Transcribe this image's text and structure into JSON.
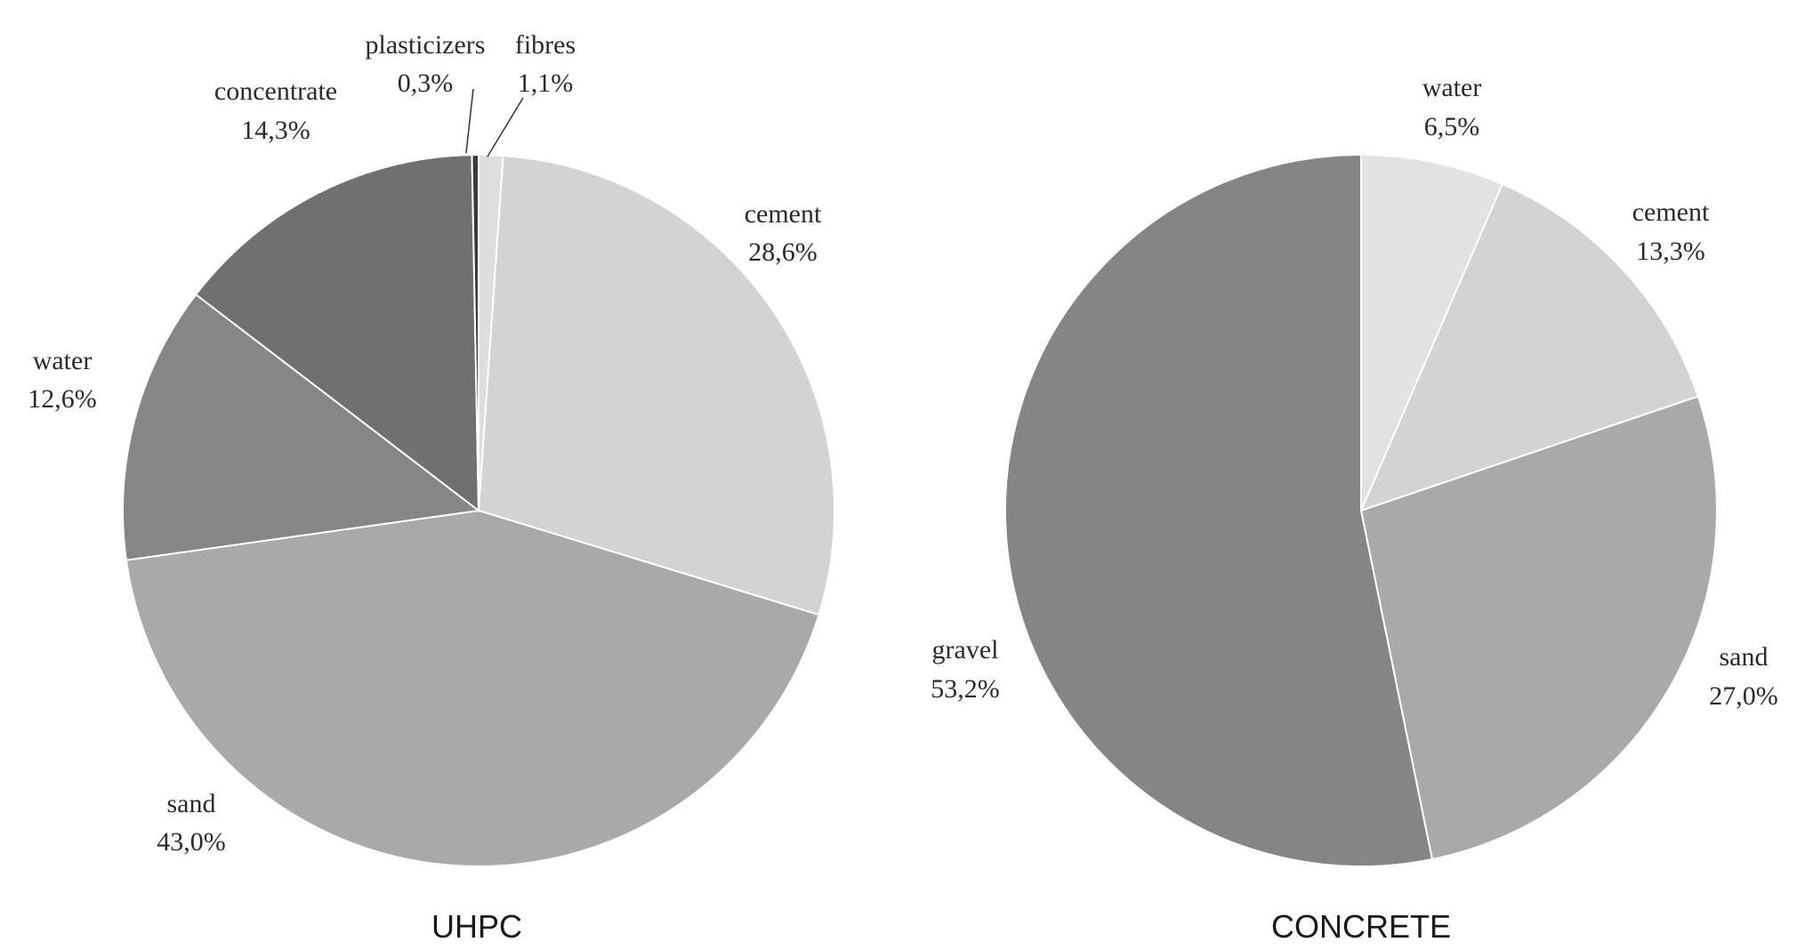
{
  "chart_data": [
    {
      "type": "pie",
      "title": "UHPC",
      "slices": [
        {
          "label": "fibres",
          "value": 1.1,
          "value_text": "1,1%",
          "color": "#dedede"
        },
        {
          "label": "cement",
          "value": 28.6,
          "value_text": "28,6%",
          "color": "#d3d3d1"
        },
        {
          "label": "sand",
          "value": 43.0,
          "value_text": "43,0%",
          "color": "#a9a9a9"
        },
        {
          "label": "water",
          "value": 12.6,
          "value_text": "12,6%",
          "color": "#868686"
        },
        {
          "label": "concentrate",
          "value": 14.3,
          "value_text": "14,3%",
          "color": "#707070"
        },
        {
          "label": "plasticizers",
          "value": 0.3,
          "value_text": "0,3%",
          "color": "#3a3a3a"
        }
      ]
    },
    {
      "type": "pie",
      "title": "CONCRETE",
      "slices": [
        {
          "label": "water",
          "value": 6.5,
          "value_text": "6,5%",
          "color": "#e2e2e2"
        },
        {
          "label": "cement",
          "value": 13.3,
          "value_text": "13,3%",
          "color": "#d3d3d1"
        },
        {
          "label": "sand",
          "value": 27.0,
          "value_text": "27,0%",
          "color": "#a9a9a9"
        },
        {
          "label": "gravel",
          "value": 53.2,
          "value_text": "53,2%",
          "color": "#858585"
        }
      ]
    }
  ]
}
